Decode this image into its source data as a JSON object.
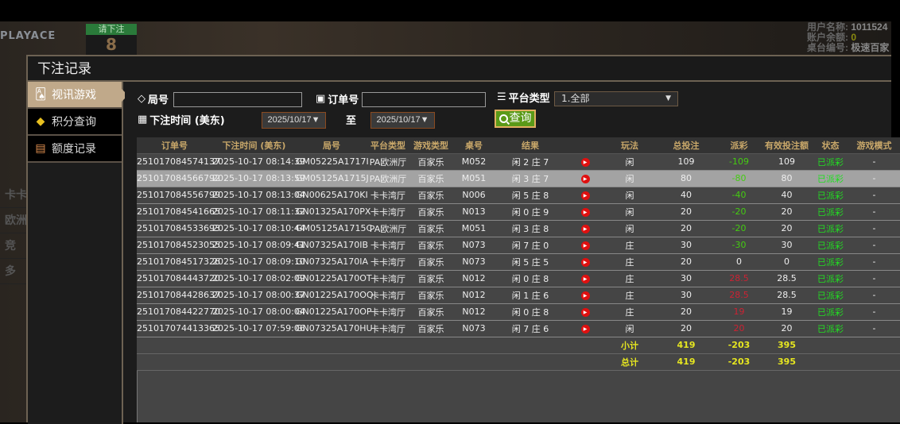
{
  "background": {
    "logo": "PLAYACE",
    "bet_prompt": "请下注",
    "countdown": "8",
    "user_label": "用户名称:",
    "user_value": "1011524",
    "balance_label": "账户余额:",
    "balance_value": "0",
    "table_label": "桌台编号:",
    "table_value": "极速百家",
    "left_items": [
      "卡卡",
      "欧洲",
      "竞",
      "多"
    ]
  },
  "modal": {
    "title": "下注记录"
  },
  "sidebar": {
    "items": [
      {
        "label": "视讯游戏",
        "icon": "cards-icon",
        "active": true
      },
      {
        "label": "积分查询",
        "icon": "diamond-icon"
      },
      {
        "label": "额度记录",
        "icon": "document-icon"
      }
    ]
  },
  "filters": {
    "round_label": "局号",
    "round_value": "",
    "order_label": "订单号",
    "order_value": "",
    "platform_label": "平台类型",
    "platform_value": "1.全部",
    "time_label": "下注时间 (美东)",
    "date_from": "2025/10/17",
    "to_label": "至",
    "date_to": "2025/10/17",
    "query_label": "查询"
  },
  "table": {
    "headers": [
      "订单号",
      "下注时间 (美东)",
      "局号",
      "平台类型",
      "游戏类型",
      "桌号",
      "结果",
      "",
      "玩法",
      "总投注",
      "派彩",
      "有效投注额",
      "状态",
      "游戏模式"
    ],
    "rows": [
      [
        "251017084574137",
        "2025-10-17 08:14:39",
        "GM05225A1717I",
        "PA欧洲厅",
        "百家乐",
        "M052",
        "闲 2 庄 7",
        "闲",
        "109",
        "-109",
        "109",
        "已派彩",
        "-"
      ],
      [
        "251017084566792",
        "2025-10-17 08:13:59",
        "GM05125A1715J",
        "PA欧洲厅",
        "百家乐",
        "M051",
        "闲 3 庄 7",
        "闲",
        "80",
        "-80",
        "80",
        "已派彩",
        "-"
      ],
      [
        "251017084556799",
        "2025-10-17 08:13:04",
        "GN00625A170KI",
        "卡卡湾厅",
        "百家乐",
        "N006",
        "闲 5 庄 8",
        "闲",
        "40",
        "-40",
        "40",
        "已派彩",
        "-"
      ],
      [
        "251017084541665",
        "2025-10-17 08:11:32",
        "GN01325A170PX",
        "卡卡湾厅",
        "百家乐",
        "N013",
        "闲 0 庄 9",
        "闲",
        "20",
        "-20",
        "20",
        "已派彩",
        "-"
      ],
      [
        "251017084533693",
        "2025-10-17 08:10:44",
        "GM05125A1715C",
        "PA欧洲厅",
        "百家乐",
        "M051",
        "闲 3 庄 8",
        "闲",
        "20",
        "-20",
        "20",
        "已派彩",
        "-"
      ],
      [
        "251017084523055",
        "2025-10-17 08:09:41",
        "GN07325A170IB",
        "卡卡湾厅",
        "百家乐",
        "N073",
        "闲 7 庄 0",
        "庄",
        "30",
        "-30",
        "30",
        "已派彩",
        "-"
      ],
      [
        "251017084517326",
        "2025-10-17 08:09:10",
        "GN07325A170IA",
        "卡卡湾厅",
        "百家乐",
        "N073",
        "闲 5 庄 5",
        "庄",
        "20",
        "0",
        "0",
        "已派彩",
        "-"
      ],
      [
        "251017084443720",
        "2025-10-17 08:02:09",
        "GN01225A170OT",
        "卡卡湾厅",
        "百家乐",
        "N012",
        "闲 0 庄 8",
        "庄",
        "30",
        "28.5",
        "28.5",
        "已派彩",
        "-"
      ],
      [
        "251017084428637",
        "2025-10-17 08:00:37",
        "GN01225A170OQ",
        "卡卡湾厅",
        "百家乐",
        "N012",
        "闲 1 庄 6",
        "庄",
        "30",
        "28.5",
        "28.5",
        "已派彩",
        "-"
      ],
      [
        "251017084422770",
        "2025-10-17 08:00:04",
        "GN01225A170OP",
        "卡卡湾厅",
        "百家乐",
        "N012",
        "闲 0 庄 8",
        "庄",
        "20",
        "19",
        "19",
        "已派彩",
        "-"
      ],
      [
        "251017074413365",
        "2025-10-17 07:59:06",
        "GN07325A170HU",
        "卡卡湾厅",
        "百家乐",
        "N073",
        "闲 7 庄 6",
        "闲",
        "20",
        "20",
        "20",
        "已派彩",
        "-"
      ]
    ],
    "selected_row": 1,
    "subtotal": {
      "label": "小计",
      "total_bet": "419",
      "payout": "-203",
      "valid_bet": "395"
    },
    "grandtotal": {
      "label": "总计",
      "total_bet": "419",
      "payout": "-203",
      "valid_bet": "395"
    }
  },
  "colors": {
    "accent": "#c0a98a",
    "win": "#44cc11",
    "lose": "#cc2233",
    "status": "#22dd22",
    "totals": "#e6e620"
  }
}
